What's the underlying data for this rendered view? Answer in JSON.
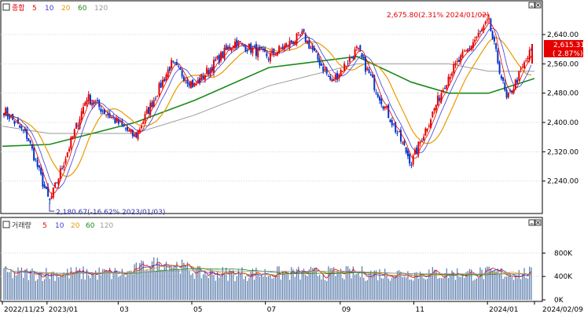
{
  "colors": {
    "up": "#e60000",
    "down": "#0033cc",
    "ma5": "#e60000",
    "ma10": "#3b3bd6",
    "ma20": "#e89a00",
    "ma60": "#1a8a1a",
    "ma120": "#9a9a9a",
    "vol": "#5577aa",
    "grid": "#d4d4d4",
    "frame": "#000000",
    "current_bg": "#e60000"
  },
  "icons": [
    "minimize-icon",
    "close-icon"
  ],
  "price_panel": {
    "legend": [
      {
        "label": "종합",
        "color": "#e60000"
      },
      {
        "label": "5",
        "color": "#e60000"
      },
      {
        "label": "10",
        "color": "#3b3bd6"
      },
      {
        "label": "20",
        "color": "#e89a00"
      },
      {
        "label": "60",
        "color": "#1a8a1a"
      },
      {
        "label": "120",
        "color": "#9a9a9a"
      }
    ],
    "max_annotation": "2,675.80(2.31% 2024/01/02)",
    "min_annotation": "2,180.67(-16.62% 2023/01/03)",
    "current_value": "2,615.31",
    "current_change": "( 2.87%)"
  },
  "volume_panel": {
    "legend": [
      {
        "label": "거래량",
        "color": "#333333"
      },
      {
        "label": "5",
        "color": "#e60000"
      },
      {
        "label": "10",
        "color": "#3b3bd6"
      },
      {
        "label": "20",
        "color": "#e89a00"
      },
      {
        "label": "60",
        "color": "#1a8a1a"
      },
      {
        "label": "120",
        "color": "#9a9a9a"
      }
    ]
  },
  "chart_data": {
    "type": "line",
    "title": "종합",
    "x_labels": [
      "2022/11/25",
      "2023/01",
      "03",
      "05",
      "07",
      "09",
      "11",
      "2024/01",
      "2024/02/09"
    ],
    "price_axis": {
      "ticks": [
        "2,640.00",
        "2,560.00",
        "2,480.00",
        "2,400.00",
        "2,320.00",
        "2,240.00"
      ],
      "range": [
        2160,
        2700
      ]
    },
    "volume_axis": {
      "ticks": [
        "800K",
        "400K",
        "0K"
      ],
      "range": [
        0,
        1100
      ]
    },
    "series": [
      {
        "name": "종합",
        "x": [
          "2022/11/25",
          "2022/12/16",
          "2023/01/03",
          "2023/02/03",
          "2023/03/15",
          "2023/04/14",
          "2023/05/03",
          "2023/06/05",
          "2023/07/04",
          "2023/08/01",
          "2023/08/25",
          "2023/09/15",
          "2023/10/30",
          "2023/11/30",
          "2024/01/02",
          "2024/01/17",
          "2024/02/09"
        ],
        "values": [
          2438,
          2360,
          2180.67,
          2470,
          2360,
          2560,
          2500,
          2620,
          2580,
          2640,
          2510,
          2600,
          2290,
          2530,
          2675.8,
          2460,
          2615.31
        ]
      },
      {
        "name": "60",
        "x": [
          "2022/11/25",
          "2023/01/03",
          "2023/03/15",
          "2023/05/03",
          "2023/07/04",
          "2023/09/15",
          "2023/10/30",
          "2023/11/30",
          "2024/01/02",
          "2024/02/09"
        ],
        "values": [
          2335,
          2340,
          2400,
          2460,
          2550,
          2580,
          2510,
          2480,
          2480,
          2520
        ]
      },
      {
        "name": "120",
        "x": [
          "2022/11/25",
          "2023/01/03",
          "2023/03/15",
          "2023/05/03",
          "2023/07/04",
          "2023/09/15",
          "2023/11/30",
          "2024/01/02",
          "2024/02/09"
        ],
        "values": [
          2390,
          2370,
          2370,
          2420,
          2500,
          2560,
          2560,
          2540,
          2540
        ]
      }
    ],
    "volume": {
      "range_k": [
        250,
        1000
      ],
      "typical_k": 450
    }
  }
}
